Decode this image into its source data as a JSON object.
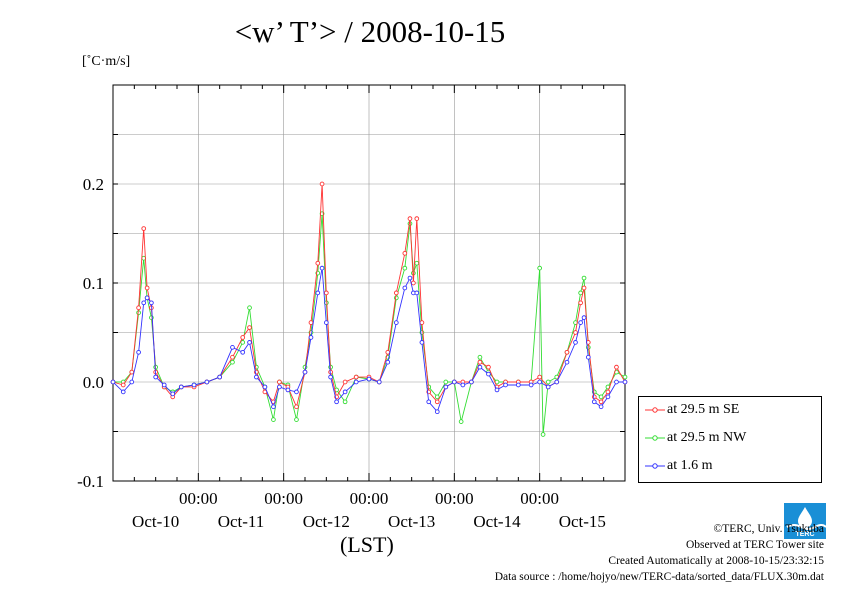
{
  "chart_data": {
    "type": "line",
    "title": "<w’ T’> / 2008-10-15",
    "ylabel": "[˚C·m/s]",
    "xlabel": "(LST)",
    "ylim": [
      -0.1,
      0.3
    ],
    "xlim": [
      0,
      6
    ],
    "grid": true,
    "legend_position": "bottom-right-outside",
    "y_ticks": [
      -0.1,
      0.0,
      0.1,
      0.2
    ],
    "y_tick_labels": [
      "-0.1",
      "0.0",
      "0.1",
      "0.2"
    ],
    "x_ticks": [
      1,
      2,
      3,
      4,
      5
    ],
    "x_tick_time_labels": [
      "00:00",
      "00:00",
      "00:00",
      "00:00",
      "00:00"
    ],
    "x_day_labels": [
      {
        "x": 0.5,
        "label": "Oct-10"
      },
      {
        "x": 1.5,
        "label": "Oct-11"
      },
      {
        "x": 2.5,
        "label": "Oct-12"
      },
      {
        "x": 3.5,
        "label": "Oct-13"
      },
      {
        "x": 4.5,
        "label": "Oct-14"
      },
      {
        "x": 5.5,
        "label": "Oct-15"
      }
    ],
    "series": [
      {
        "name": "at 29.5 m SE",
        "color": "#ff3333",
        "points": [
          [
            0.0,
            0.0
          ],
          [
            0.12,
            -0.003
          ],
          [
            0.22,
            0.01
          ],
          [
            0.3,
            0.075
          ],
          [
            0.36,
            0.155
          ],
          [
            0.4,
            0.095
          ],
          [
            0.45,
            0.075
          ],
          [
            0.5,
            0.01
          ],
          [
            0.6,
            -0.005
          ],
          [
            0.7,
            -0.015
          ],
          [
            0.8,
            -0.005
          ],
          [
            0.95,
            -0.005
          ],
          [
            1.1,
            0.0
          ],
          [
            1.25,
            0.005
          ],
          [
            1.4,
            0.025
          ],
          [
            1.52,
            0.045
          ],
          [
            1.6,
            0.055
          ],
          [
            1.68,
            0.01
          ],
          [
            1.78,
            -0.01
          ],
          [
            1.88,
            -0.02
          ],
          [
            1.95,
            0.0
          ],
          [
            2.05,
            -0.005
          ],
          [
            2.15,
            -0.025
          ],
          [
            2.25,
            0.01
          ],
          [
            2.32,
            0.06
          ],
          [
            2.4,
            0.12
          ],
          [
            2.45,
            0.2
          ],
          [
            2.5,
            0.09
          ],
          [
            2.55,
            0.01
          ],
          [
            2.62,
            -0.015
          ],
          [
            2.72,
            0.0
          ],
          [
            2.85,
            0.005
          ],
          [
            3.0,
            0.005
          ],
          [
            3.12,
            0.0
          ],
          [
            3.22,
            0.03
          ],
          [
            3.32,
            0.09
          ],
          [
            3.42,
            0.13
          ],
          [
            3.48,
            0.165
          ],
          [
            3.52,
            0.1
          ],
          [
            3.56,
            0.165
          ],
          [
            3.62,
            0.06
          ],
          [
            3.7,
            -0.01
          ],
          [
            3.8,
            -0.02
          ],
          [
            3.9,
            -0.005
          ],
          [
            4.0,
            0.0
          ],
          [
            4.1,
            0.0
          ],
          [
            4.2,
            0.0
          ],
          [
            4.3,
            0.02
          ],
          [
            4.4,
            0.015
          ],
          [
            4.5,
            -0.005
          ],
          [
            4.6,
            0.0
          ],
          [
            4.75,
            0.0
          ],
          [
            4.9,
            0.0
          ],
          [
            5.0,
            0.005
          ],
          [
            5.1,
            -0.005
          ],
          [
            5.2,
            0.0
          ],
          [
            5.32,
            0.03
          ],
          [
            5.42,
            0.05
          ],
          [
            5.48,
            0.08
          ],
          [
            5.52,
            0.095
          ],
          [
            5.57,
            0.04
          ],
          [
            5.64,
            -0.015
          ],
          [
            5.72,
            -0.02
          ],
          [
            5.8,
            -0.01
          ],
          [
            5.9,
            0.015
          ],
          [
            6.0,
            0.0
          ]
        ]
      },
      {
        "name": "at 29.5 m NW",
        "color": "#33dd33",
        "points": [
          [
            0.0,
            0.0
          ],
          [
            0.12,
            0.0
          ],
          [
            0.22,
            0.01
          ],
          [
            0.3,
            0.07
          ],
          [
            0.36,
            0.125
          ],
          [
            0.4,
            0.085
          ],
          [
            0.45,
            0.065
          ],
          [
            0.5,
            0.015
          ],
          [
            0.6,
            -0.005
          ],
          [
            0.7,
            -0.01
          ],
          [
            0.8,
            -0.005
          ],
          [
            0.95,
            -0.003
          ],
          [
            1.1,
            0.0
          ],
          [
            1.25,
            0.005
          ],
          [
            1.4,
            0.02
          ],
          [
            1.52,
            0.04
          ],
          [
            1.6,
            0.075
          ],
          [
            1.68,
            0.015
          ],
          [
            1.78,
            -0.005
          ],
          [
            1.88,
            -0.038
          ],
          [
            1.95,
            0.0
          ],
          [
            2.05,
            -0.003
          ],
          [
            2.15,
            -0.038
          ],
          [
            2.25,
            0.015
          ],
          [
            2.32,
            0.05
          ],
          [
            2.4,
            0.11
          ],
          [
            2.45,
            0.17
          ],
          [
            2.5,
            0.08
          ],
          [
            2.55,
            0.015
          ],
          [
            2.62,
            -0.008
          ],
          [
            2.72,
            -0.02
          ],
          [
            2.85,
            0.005
          ],
          [
            3.0,
            0.003
          ],
          [
            3.12,
            0.0
          ],
          [
            3.22,
            0.025
          ],
          [
            3.32,
            0.085
          ],
          [
            3.42,
            0.115
          ],
          [
            3.48,
            0.16
          ],
          [
            3.52,
            0.11
          ],
          [
            3.56,
            0.12
          ],
          [
            3.62,
            0.05
          ],
          [
            3.7,
            -0.005
          ],
          [
            3.8,
            -0.015
          ],
          [
            3.9,
            0.0
          ],
          [
            4.0,
            0.0
          ],
          [
            4.08,
            -0.04
          ],
          [
            4.2,
            0.0
          ],
          [
            4.3,
            0.025
          ],
          [
            4.4,
            0.01
          ],
          [
            4.5,
            0.0
          ],
          [
            4.6,
            0.0
          ],
          [
            4.75,
            0.0
          ],
          [
            4.9,
            0.0
          ],
          [
            5.0,
            0.115
          ],
          [
            5.04,
            -0.053
          ],
          [
            5.1,
            0.0
          ],
          [
            5.2,
            0.005
          ],
          [
            5.32,
            0.03
          ],
          [
            5.42,
            0.06
          ],
          [
            5.48,
            0.09
          ],
          [
            5.52,
            0.105
          ],
          [
            5.57,
            0.035
          ],
          [
            5.64,
            -0.01
          ],
          [
            5.72,
            -0.015
          ],
          [
            5.8,
            -0.005
          ],
          [
            5.9,
            0.01
          ],
          [
            6.0,
            0.005
          ]
        ]
      },
      {
        "name": "at 1.6 m",
        "color": "#3333ff",
        "points": [
          [
            0.0,
            0.0
          ],
          [
            0.12,
            -0.01
          ],
          [
            0.22,
            0.0
          ],
          [
            0.3,
            0.03
          ],
          [
            0.36,
            0.08
          ],
          [
            0.4,
            0.085
          ],
          [
            0.45,
            0.08
          ],
          [
            0.5,
            0.005
          ],
          [
            0.6,
            -0.003
          ],
          [
            0.7,
            -0.012
          ],
          [
            0.8,
            -0.005
          ],
          [
            0.95,
            -0.003
          ],
          [
            1.1,
            0.0
          ],
          [
            1.25,
            0.005
          ],
          [
            1.4,
            0.035
          ],
          [
            1.52,
            0.03
          ],
          [
            1.6,
            0.04
          ],
          [
            1.68,
            0.005
          ],
          [
            1.78,
            -0.005
          ],
          [
            1.88,
            -0.025
          ],
          [
            1.95,
            -0.005
          ],
          [
            2.05,
            -0.008
          ],
          [
            2.15,
            -0.01
          ],
          [
            2.25,
            0.01
          ],
          [
            2.32,
            0.045
          ],
          [
            2.4,
            0.09
          ],
          [
            2.45,
            0.115
          ],
          [
            2.5,
            0.06
          ],
          [
            2.55,
            0.005
          ],
          [
            2.62,
            -0.02
          ],
          [
            2.72,
            -0.01
          ],
          [
            2.85,
            0.0
          ],
          [
            3.0,
            0.003
          ],
          [
            3.12,
            0.0
          ],
          [
            3.22,
            0.02
          ],
          [
            3.32,
            0.06
          ],
          [
            3.42,
            0.095
          ],
          [
            3.48,
            0.105
          ],
          [
            3.52,
            0.09
          ],
          [
            3.56,
            0.09
          ],
          [
            3.62,
            0.04
          ],
          [
            3.7,
            -0.02
          ],
          [
            3.8,
            -0.03
          ],
          [
            3.9,
            -0.005
          ],
          [
            4.0,
            0.0
          ],
          [
            4.1,
            -0.003
          ],
          [
            4.2,
            0.0
          ],
          [
            4.3,
            0.015
          ],
          [
            4.4,
            0.008
          ],
          [
            4.5,
            -0.008
          ],
          [
            4.6,
            -0.003
          ],
          [
            4.75,
            -0.003
          ],
          [
            4.9,
            -0.003
          ],
          [
            5.0,
            0.0
          ],
          [
            5.1,
            -0.005
          ],
          [
            5.2,
            0.0
          ],
          [
            5.32,
            0.02
          ],
          [
            5.42,
            0.04
          ],
          [
            5.48,
            0.06
          ],
          [
            5.52,
            0.065
          ],
          [
            5.57,
            0.025
          ],
          [
            5.64,
            -0.02
          ],
          [
            5.72,
            -0.025
          ],
          [
            5.8,
            -0.015
          ],
          [
            5.9,
            0.0
          ],
          [
            6.0,
            0.0
          ]
        ]
      }
    ]
  },
  "credits": {
    "copyright": "©TERC, Univ. Tsukuba",
    "observed": "Observed at TERC Tower site",
    "created": "Created Automatically at 2008-10-15/23:32:15",
    "source": "Data source : /home/hojyo/new/TERC-data/sorted_data/FLUX.30m.dat",
    "logo_text": "TERC"
  }
}
